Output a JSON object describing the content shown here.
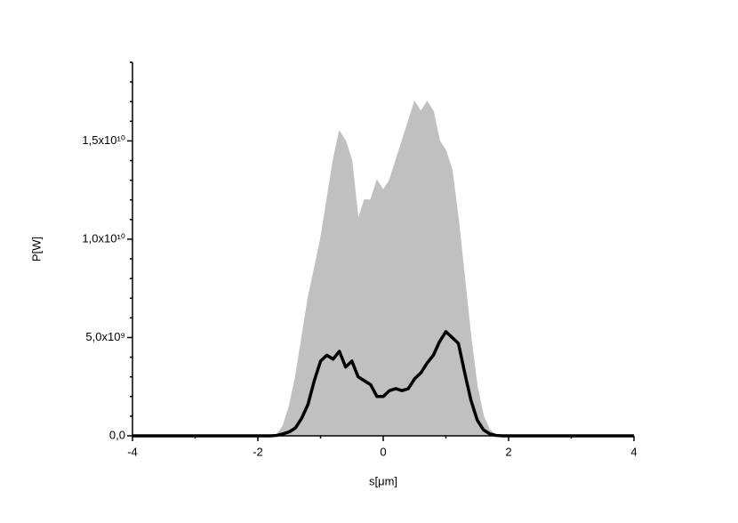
{
  "chart_data": {
    "type": "line",
    "xlabel": "s[μm]",
    "ylabel": "P[W]",
    "x": [
      -4,
      -2.0,
      -1.9,
      -1.8,
      -1.7,
      -1.6,
      -1.5,
      -1.4,
      -1.3,
      -1.2,
      -1.1,
      -1.0,
      -0.9,
      -0.8,
      -0.7,
      -0.6,
      -0.5,
      -0.4,
      -0.3,
      -0.2,
      -0.1,
      0,
      0.1,
      0.2,
      0.3,
      0.4,
      0.5,
      0.6,
      0.7,
      0.8,
      0.9,
      1.0,
      1.1,
      1.2,
      1.3,
      1.4,
      1.5,
      1.6,
      1.7,
      1.8,
      1.9,
      2.0,
      4
    ],
    "series": [
      {
        "color": "#c0c0c0",
        "area": true,
        "values": [
          0,
          0,
          0,
          20000000.0,
          50000000.0,
          500000000.0,
          1500000000.0,
          3000000000.0,
          5000000000.0,
          7000000000.0,
          8500000000.0,
          10000000000.0,
          12000000000.0,
          14000000000.0,
          15500000000.0,
          15000000000.0,
          14000000000.0,
          11000000000.0,
          12000000000.0,
          12000000000.0,
          13000000000.0,
          12500000000.0,
          13000000000.0,
          14000000000.0,
          15000000000.0,
          16000000000.0,
          17000000000.0,
          16500000000.0,
          17000000000.0,
          16500000000.0,
          15000000000.0,
          14500000000.0,
          13500000000.0,
          11000000000.0,
          8000000000.0,
          5000000000.0,
          2500000000.0,
          1000000000.0,
          300000000.0,
          50000000.0,
          0,
          0,
          0
        ]
      },
      {
        "color": "#000000",
        "area": false,
        "values": [
          0,
          0,
          0,
          0,
          20000000.0,
          100000000.0,
          200000000.0,
          400000000.0,
          900000000.0,
          1600000000.0,
          2800000000.0,
          3800000000.0,
          4100000000.0,
          3900000000.0,
          4300000000.0,
          3500000000.0,
          3800000000.0,
          3000000000.0,
          2800000000.0,
          2600000000.0,
          2000000000.0,
          2000000000.0,
          2300000000.0,
          2400000000.0,
          2300000000.0,
          2400000000.0,
          2900000000.0,
          3200000000.0,
          3700000000.0,
          4100000000.0,
          4800000000.0,
          5300000000.0,
          5000000000.0,
          4700000000.0,
          3200000000.0,
          1800000000.0,
          800000000.0,
          300000000.0,
          100000000.0,
          20000000.0,
          0,
          0,
          0
        ]
      }
    ],
    "xlim": [
      -4,
      4
    ],
    "xticks": [
      -4,
      -2,
      0,
      2,
      4
    ],
    "ylim": [
      0,
      19000000000.0
    ],
    "yticks": [
      {
        "value": 0,
        "label": "0,0"
      },
      {
        "value": 5000000000.0,
        "label": "5,0x10⁹"
      },
      {
        "value": 10000000000.0,
        "label": "1,0x10¹⁰"
      },
      {
        "value": 15000000000.0,
        "label": "1,5x10¹⁰"
      }
    ],
    "grid": false
  }
}
